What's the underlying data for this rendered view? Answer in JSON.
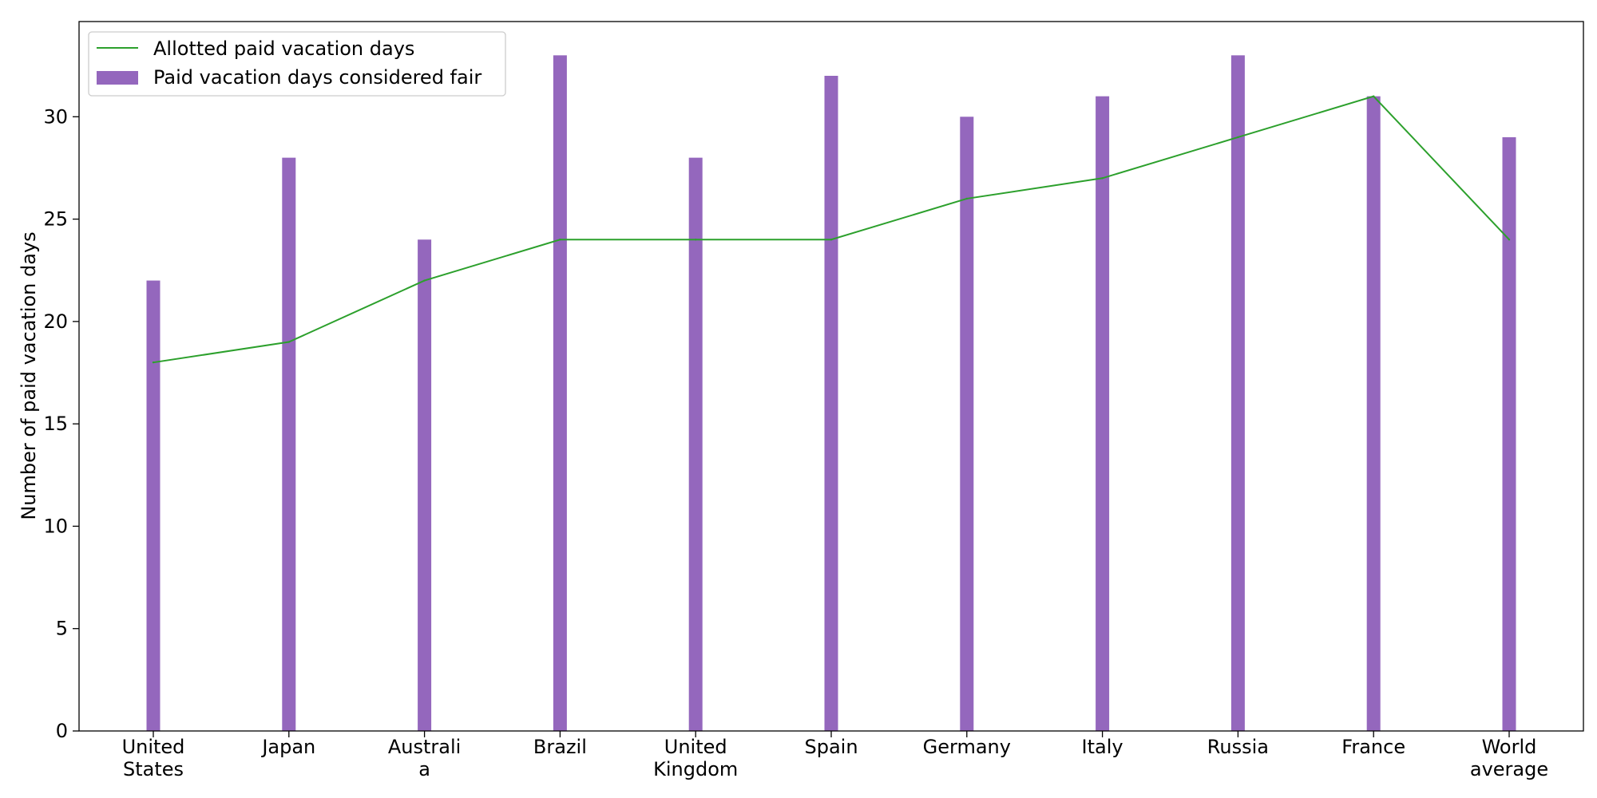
{
  "chart_data": {
    "type": "bar",
    "categories": [
      [
        "United",
        "States"
      ],
      [
        "Japan"
      ],
      [
        "Australi",
        "a"
      ],
      [
        "Brazil"
      ],
      [
        "United",
        "Kingdom"
      ],
      [
        "Spain"
      ],
      [
        "Germany"
      ],
      [
        "Italy"
      ],
      [
        "Russia"
      ],
      [
        "France"
      ],
      [
        "World",
        "average"
      ]
    ],
    "series": [
      {
        "name": "Paid vacation days considered fair",
        "kind": "bar",
        "color": "#9467bd",
        "values": [
          22,
          28,
          24,
          33,
          28,
          32,
          30,
          31,
          33,
          31,
          29
        ]
      },
      {
        "name": "Allotted paid vacation days",
        "kind": "line",
        "color": "#2ca02c",
        "values": [
          18,
          19,
          22,
          24,
          24,
          24,
          26,
          27,
          29,
          31,
          24
        ]
      }
    ],
    "ylabel": "Number of paid vacation days",
    "xlabel": "",
    "ylim": [
      0,
      34.65
    ],
    "yticks": [
      0,
      5,
      10,
      15,
      20,
      25,
      30
    ],
    "legend_position": "top-left",
    "grid": false
  }
}
